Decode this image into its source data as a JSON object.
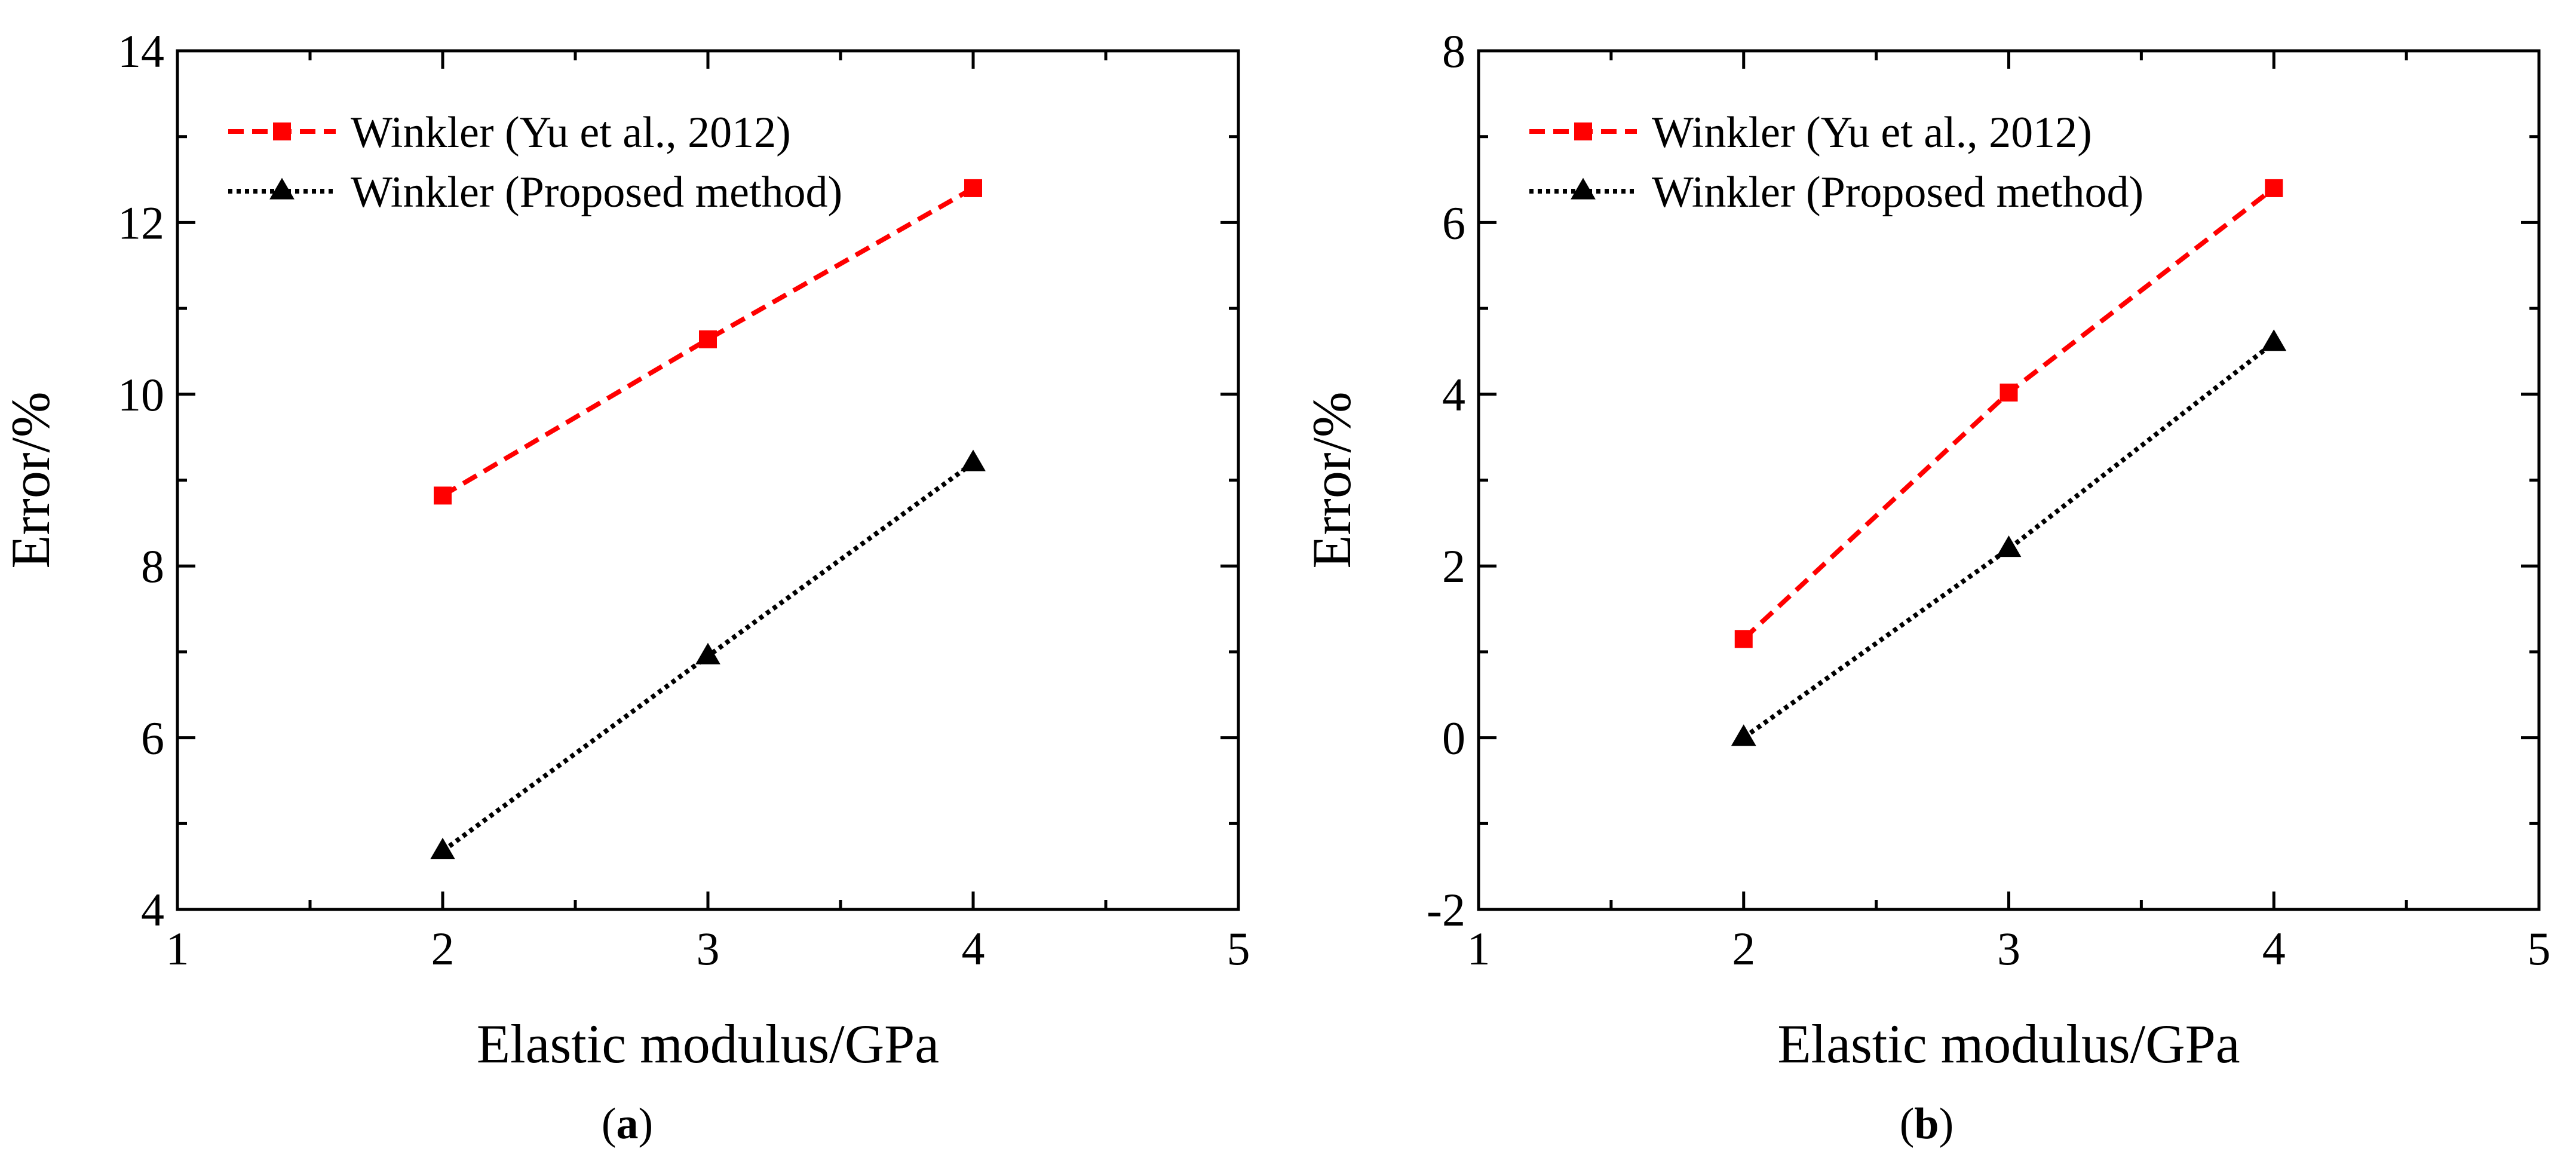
{
  "chart_data": [
    {
      "type": "line",
      "caption": "a",
      "xlabel": "Elastic modulus/GPa",
      "ylabel": "Error/%",
      "xlim": [
        1,
        5
      ],
      "ylim": [
        4,
        14
      ],
      "xticks": [
        1,
        2,
        3,
        4,
        5
      ],
      "yticks": [
        4,
        6,
        8,
        10,
        12,
        14
      ],
      "xtick_labels": [
        "1",
        "2",
        "3",
        "4",
        "5"
      ],
      "ytick_labels": [
        "4",
        "6",
        "8",
        "10",
        "12",
        "14"
      ],
      "legend_position": "top-left",
      "series": [
        {
          "name": "Winkler (Yu et al., 2012)",
          "color": "#ff0000",
          "marker": "square",
          "dash": "dashed",
          "x": [
            2,
            3,
            4
          ],
          "y": [
            8.82,
            10.64,
            12.4
          ]
        },
        {
          "name": "Winkler (Proposed method)",
          "color": "#000000",
          "marker": "triangle",
          "dash": "dotted",
          "x": [
            2,
            3,
            4
          ],
          "y": [
            4.68,
            6.95,
            9.2
          ]
        }
      ]
    },
    {
      "type": "line",
      "caption": "b",
      "xlabel": "Elastic modulus/GPa",
      "ylabel": "Error/%",
      "xlim": [
        1,
        5
      ],
      "ylim": [
        -2,
        8
      ],
      "xticks": [
        1,
        2,
        3,
        4,
        5
      ],
      "yticks": [
        -2,
        0,
        2,
        4,
        6,
        8
      ],
      "xtick_labels": [
        "1",
        "2",
        "3",
        "4",
        "5"
      ],
      "ytick_labels": [
        "-2",
        "0",
        "2",
        "4",
        "6",
        "8"
      ],
      "legend_position": "top-left",
      "series": [
        {
          "name": "Winkler (Yu et al., 2012)",
          "color": "#ff0000",
          "marker": "square",
          "dash": "dashed",
          "x": [
            2,
            3,
            4
          ],
          "y": [
            1.15,
            4.02,
            6.4
          ]
        },
        {
          "name": "Winkler (Proposed method)",
          "color": "#000000",
          "marker": "triangle",
          "dash": "dotted",
          "x": [
            2,
            3,
            4
          ],
          "y": [
            0.0,
            2.2,
            4.6
          ]
        }
      ]
    }
  ]
}
